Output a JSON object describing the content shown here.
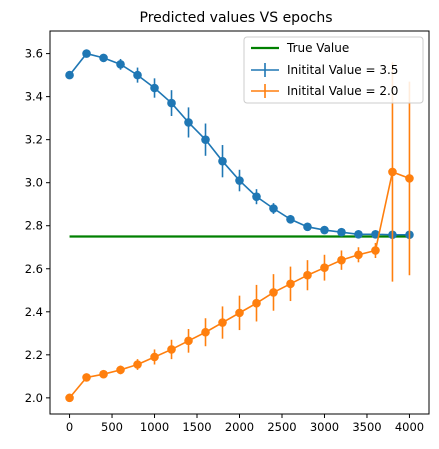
{
  "chart_data": {
    "type": "line",
    "title": "Predicted values VS epochs",
    "xlabel": "",
    "ylabel": "",
    "xlim": [
      -230,
      4230
    ],
    "ylim": [
      1.925,
      3.705
    ],
    "xticks": [
      0,
      500,
      1000,
      1500,
      2000,
      2500,
      3000,
      3500,
      4000
    ],
    "yticks": [
      2.0,
      2.2,
      2.4,
      2.6,
      2.8,
      3.0,
      3.2,
      3.4,
      3.6
    ],
    "ytick_labels": [
      "2.0",
      "2.2",
      "2.4",
      "2.6",
      "2.8",
      "3.0",
      "3.2",
      "3.4",
      "3.6"
    ],
    "legend_position": "top-right",
    "grid": false,
    "reference_line": {
      "name": "True Value",
      "y": 2.75,
      "x_range": [
        0,
        4000
      ],
      "color": "#008000"
    },
    "x": [
      0,
      200,
      400,
      600,
      800,
      1000,
      1200,
      1400,
      1600,
      1800,
      2000,
      2200,
      2400,
      2600,
      2800,
      3000,
      3200,
      3400,
      3600,
      3800,
      4000
    ],
    "series": [
      {
        "name": "Initital Value = 3.5",
        "color": "#1f77b4",
        "values": [
          3.5,
          3.6,
          3.58,
          3.55,
          3.5,
          3.44,
          3.37,
          3.28,
          3.2,
          3.1,
          3.01,
          2.935,
          2.88,
          2.83,
          2.795,
          2.78,
          2.77,
          2.76,
          2.76,
          2.758,
          2.758
        ],
        "errors": [
          0.0,
          0.0,
          0.015,
          0.025,
          0.035,
          0.045,
          0.06,
          0.07,
          0.075,
          0.075,
          0.05,
          0.035,
          0.025,
          0.02,
          0.015,
          0.01,
          0.008,
          0.006,
          0.005,
          0.004,
          0.004
        ]
      },
      {
        "name": "Initital Value = 2.0",
        "color": "#ff7f0e",
        "values": [
          2.0,
          2.095,
          2.11,
          2.13,
          2.155,
          2.19,
          2.225,
          2.265,
          2.305,
          2.35,
          2.395,
          2.44,
          2.49,
          2.53,
          2.57,
          2.605,
          2.64,
          2.665,
          2.685,
          3.05,
          3.02
        ],
        "errors": [
          0.0,
          0.0,
          0.01,
          0.02,
          0.025,
          0.035,
          0.045,
          0.055,
          0.065,
          0.075,
          0.08,
          0.085,
          0.085,
          0.08,
          0.07,
          0.06,
          0.045,
          0.035,
          0.035,
          0.51,
          0.45
        ]
      }
    ]
  }
}
